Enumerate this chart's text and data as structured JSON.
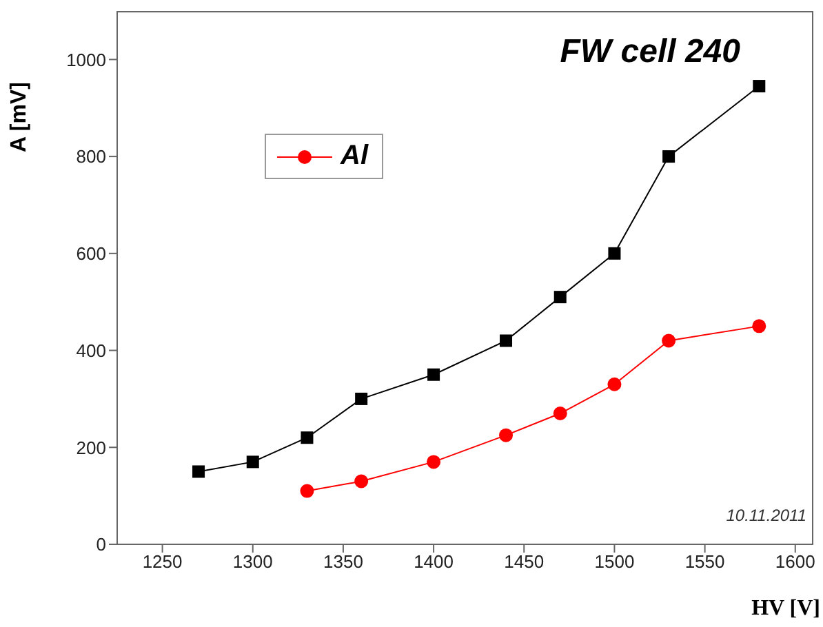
{
  "chart_data": {
    "type": "line",
    "title": "FW cell 240",
    "xlabel": "HV [V]",
    "ylabel": "A [mV]",
    "annotations": [
      "10.11.2011"
    ],
    "xlim": [
      1225,
      1610
    ],
    "xticks": [
      1250,
      1300,
      1350,
      1400,
      1450,
      1500,
      1550,
      1600
    ],
    "ylim": [
      0,
      1100
    ],
    "yticks": [
      0,
      200,
      400,
      600,
      800,
      1000
    ],
    "grid": false,
    "legend": "top left",
    "series": [
      {
        "color": "#000000",
        "marker": "square",
        "x": [
          1270,
          1300,
          1330,
          1360,
          1400,
          1440,
          1470,
          1500,
          1530,
          1580
        ],
        "values": [
          150,
          170,
          220,
          300,
          350,
          420,
          510,
          600,
          800,
          945
        ]
      },
      {
        "name": "Al",
        "color": "#ff0000",
        "marker": "circle",
        "x": [
          1330,
          1360,
          1400,
          1440,
          1470,
          1500,
          1530,
          1580
        ],
        "values": [
          110,
          130,
          170,
          225,
          270,
          330,
          420,
          450
        ]
      }
    ]
  }
}
